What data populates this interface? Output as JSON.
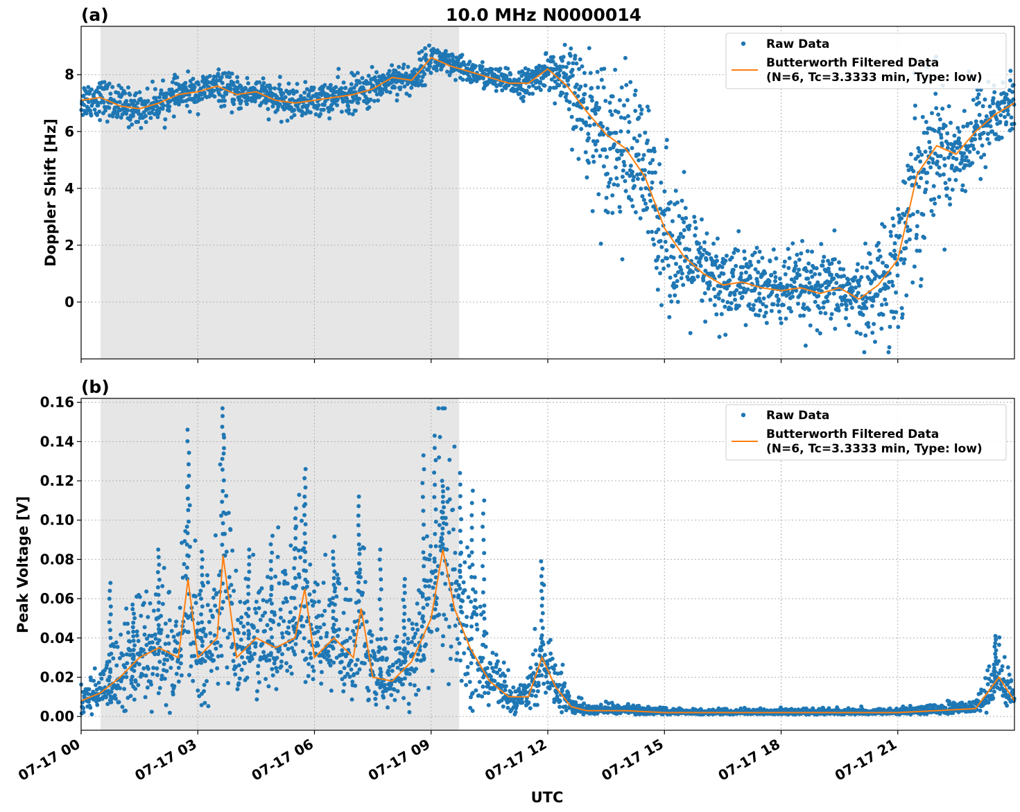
{
  "figure_title": "10.0 MHz N0000014",
  "xlabel": "UTC",
  "colors": {
    "raw": "#1f77b4",
    "filtered": "#ff7f0e",
    "shade": "#e6e6e6"
  },
  "legend": {
    "raw": "Raw Data",
    "filtered_line1": "Butterworth Filtered Data",
    "filtered_line2": "(N=6, Tc=3.3333 min, Type: low)"
  },
  "chart_data": [
    {
      "type": "scatter",
      "panel": "(a)",
      "ylabel": "Doppler Shift [Hz]",
      "xlim_hours": [
        0,
        24
      ],
      "ylim": [
        -2,
        9.7
      ],
      "x_ticks_hours": [
        0,
        3,
        6,
        9,
        12,
        15,
        18,
        21
      ],
      "x_tick_labels": [
        "07-17 00",
        "07-17 03",
        "07-17 06",
        "07-17 09",
        "07-17 12",
        "07-17 15",
        "07-17 18",
        "07-17 21"
      ],
      "y_ticks": [
        0,
        2,
        4,
        6,
        8
      ],
      "y_tick_labels": [
        "0",
        "2",
        "4",
        "6",
        "8"
      ],
      "shaded_span_hours": [
        0.5,
        9.72
      ],
      "grid": true,
      "legend_position": "top-right",
      "series": [
        {
          "name": "Butterworth Filtered Data",
          "x_hours": [
            0,
            0.5,
            1,
            1.5,
            2,
            2.5,
            3,
            3.5,
            4,
            4.5,
            5,
            5.5,
            6,
            6.5,
            7,
            7.5,
            8,
            8.5,
            9,
            9.5,
            10,
            10.5,
            11,
            11.5,
            12,
            12.5,
            13,
            13.5,
            14,
            14.5,
            15,
            15.5,
            16,
            16.5,
            17,
            17.5,
            18,
            18.5,
            19,
            19.5,
            20,
            20.5,
            21,
            21.5,
            22,
            22.5,
            23,
            23.5,
            24
          ],
          "y": [
            7.1,
            7.2,
            6.9,
            6.8,
            7.0,
            7.3,
            7.4,
            7.6,
            7.3,
            7.4,
            7.1,
            7.0,
            7.1,
            7.2,
            7.3,
            7.5,
            7.9,
            7.8,
            8.6,
            8.3,
            8.1,
            7.9,
            7.7,
            7.7,
            8.2,
            7.6,
            6.7,
            5.9,
            5.4,
            4.4,
            2.6,
            1.6,
            1.0,
            0.6,
            0.7,
            0.5,
            0.4,
            0.5,
            0.3,
            0.5,
            0.1,
            0.6,
            1.5,
            4.5,
            5.5,
            5.2,
            6.0,
            6.6,
            7.0
          ]
        },
        {
          "name": "Raw Data",
          "envelope_x_hours": [
            0,
            1,
            2,
            3,
            4,
            5,
            6,
            7,
            8,
            9,
            10,
            11,
            12,
            12.5,
            13,
            13.5,
            14,
            14.5,
            15,
            15.5,
            16,
            17,
            18,
            19,
            19.5,
            20,
            20.5,
            21,
            21.5,
            22,
            23,
            24
          ],
          "envelope_spread": [
            0.6,
            0.6,
            0.5,
            0.5,
            0.5,
            0.5,
            0.5,
            0.6,
            0.5,
            0.5,
            0.4,
            0.4,
            0.5,
            1.2,
            2.0,
            2.3,
            2.5,
            2.5,
            2.3,
            2.0,
            1.5,
            1.3,
            1.2,
            1.2,
            1.2,
            1.2,
            1.5,
            2.5,
            3.0,
            2.0,
            1.5,
            1.0
          ]
        }
      ]
    },
    {
      "type": "scatter",
      "panel": "(b)",
      "ylabel": "Peak Voltage [V]",
      "xlim_hours": [
        0,
        24
      ],
      "ylim": [
        -0.007,
        0.162
      ],
      "x_ticks_hours": [
        0,
        3,
        6,
        9,
        12,
        15,
        18,
        21
      ],
      "x_tick_labels": [
        "07-17 00",
        "07-17 03",
        "07-17 06",
        "07-17 09",
        "07-17 12",
        "07-17 15",
        "07-17 18",
        "07-17 21"
      ],
      "y_ticks": [
        0.0,
        0.02,
        0.04,
        0.06,
        0.08,
        0.1,
        0.12,
        0.14,
        0.16
      ],
      "y_tick_labels": [
        "0.00",
        "0.02",
        "0.04",
        "0.06",
        "0.08",
        "0.10",
        "0.12",
        "0.14",
        "0.16"
      ],
      "shaded_span_hours": [
        0.5,
        9.72
      ],
      "grid": true,
      "legend_position": "top-right",
      "series": [
        {
          "name": "Butterworth Filtered Data",
          "x_hours": [
            0,
            0.5,
            1,
            1.5,
            2,
            2.5,
            2.75,
            3,
            3.5,
            3.65,
            4,
            4.5,
            5,
            5.5,
            5.75,
            6,
            6.5,
            7,
            7.2,
            7.5,
            8,
            8.5,
            9,
            9.3,
            9.6,
            10,
            10.5,
            11,
            11.5,
            11.85,
            12.2,
            12.6,
            13,
            14,
            15,
            16,
            17,
            18,
            19,
            20,
            21,
            22,
            23,
            23.6,
            24
          ],
          "y": [
            0.008,
            0.012,
            0.02,
            0.03,
            0.035,
            0.03,
            0.07,
            0.03,
            0.04,
            0.082,
            0.03,
            0.04,
            0.035,
            0.04,
            0.065,
            0.03,
            0.04,
            0.03,
            0.055,
            0.02,
            0.018,
            0.028,
            0.05,
            0.085,
            0.055,
            0.035,
            0.018,
            0.01,
            0.01,
            0.03,
            0.015,
            0.005,
            0.003,
            0.003,
            0.002,
            0.002,
            0.002,
            0.002,
            0.002,
            0.002,
            0.002,
            0.003,
            0.004,
            0.02,
            0.008
          ]
        },
        {
          "name": "Raw Data",
          "peak_x_hours": [
            0.75,
            1.35,
            2.0,
            2.75,
            3.1,
            3.65,
            4.3,
            4.9,
            5.5,
            5.75,
            6.5,
            7.15,
            7.7,
            8.3,
            8.8,
            9.1,
            9.3,
            9.75,
            10.05,
            10.35,
            11.85,
            23.5
          ],
          "peak_y": [
            0.068,
            0.057,
            0.085,
            0.146,
            0.084,
            0.153,
            0.085,
            0.092,
            0.106,
            0.126,
            0.084,
            0.112,
            0.085,
            0.07,
            0.133,
            0.143,
            0.12,
            0.124,
            0.115,
            0.11,
            0.079,
            0.041
          ]
        }
      ]
    }
  ]
}
